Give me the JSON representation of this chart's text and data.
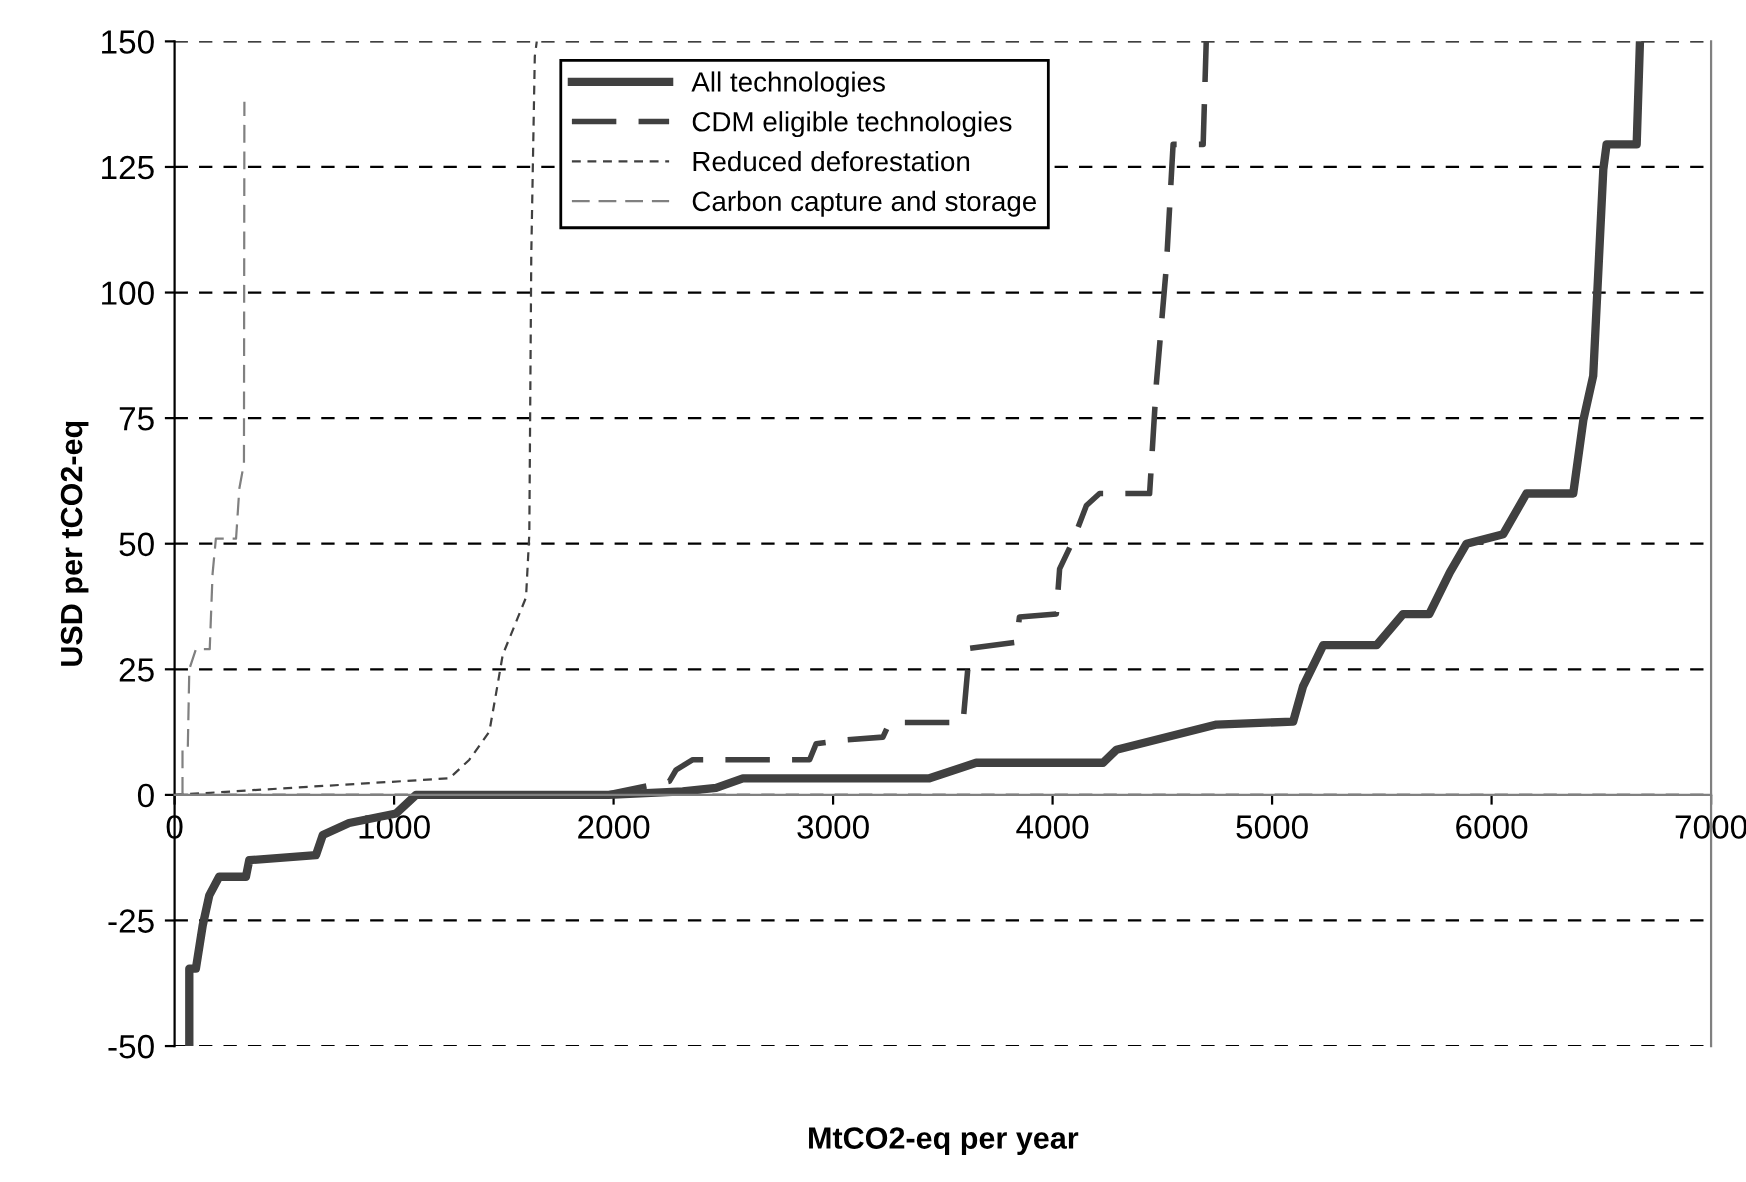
{
  "chart_data": {
    "type": "line",
    "xlabel": "MtCO2-eq per year",
    "ylabel": "USD per tCO2-eq",
    "xlim": [
      0,
      7000
    ],
    "xticks": [
      0,
      1000,
      2000,
      3000,
      4000,
      5000,
      6000,
      7000
    ],
    "ylim": [
      -50,
      150
    ],
    "yticks": [
      -50,
      -25,
      0,
      25,
      50,
      75,
      100,
      125,
      150
    ],
    "grid": "y",
    "legend": "top",
    "series": [
      {
        "name": "All technologies",
        "color": "#404040",
        "line_style": "solid",
        "x": [
          67,
          67,
          97,
          128,
          158,
          203,
          325,
          340,
          644,
          675,
          795,
          1009,
          1100,
          1978,
          2315,
          2467,
          2589,
          3439,
          3652,
          4230,
          4291,
          4747,
          5096,
          5141,
          5233,
          5476,
          5597,
          5716,
          5810,
          5886,
          6053,
          6159,
          6372,
          6418,
          6463,
          6509,
          6524,
          6661,
          6676
        ],
        "values": [
          -50,
          -34.6,
          -34.6,
          -26,
          -20,
          -16.3,
          -16.3,
          -13,
          -12,
          -8,
          -5.6,
          -3.7,
          0,
          0,
          0.7,
          1.4,
          3.3,
          3.3,
          6.4,
          6.4,
          9,
          14,
          14.6,
          21.6,
          29.8,
          29.8,
          36,
          36,
          44.3,
          50,
          51.9,
          60,
          60,
          74.6,
          83.4,
          124.5,
          129.5,
          129.5,
          150
        ]
      },
      {
        "name": "CDM eligible technologies",
        "color": "#404040",
        "line_style": "dashed",
        "x": [
          1951,
          2254,
          2285,
          2361,
          2893,
          2923,
          3045,
          3227,
          3257,
          3592,
          3622,
          3835,
          3849,
          4017,
          4032,
          4093,
          4154,
          4214,
          4442,
          4473,
          4518,
          4549,
          4686,
          4700
        ],
        "values": [
          0,
          2.7,
          5,
          7,
          7,
          10.2,
          10.9,
          11.5,
          14.4,
          14.4,
          29.2,
          30.4,
          35.4,
          36,
          45,
          50.6,
          57.6,
          60,
          60,
          82,
          105,
          129.5,
          129.5,
          150
        ]
      },
      {
        "name": "Reduced deforestation",
        "color": "#404040",
        "line_style": "dotted",
        "x": [
          0,
          1252,
          1343,
          1434,
          1465,
          1495,
          1601,
          1616,
          1625,
          1641,
          1650
        ],
        "values": [
          0,
          3.3,
          7,
          12.6,
          20.3,
          27.9,
          39.3,
          51.9,
          107.6,
          147,
          150
        ]
      },
      {
        "name": "Carbon capture and storage",
        "color": "#808080",
        "line_style": "dashed",
        "x": [
          36,
          36,
          60,
          67,
          97,
          160,
          173,
          188,
          280,
          295,
          316,
          318
        ],
        "values": [
          0,
          9,
          9,
          25,
          29,
          29,
          44,
          51,
          51,
          61,
          66,
          138
        ]
      }
    ]
  }
}
